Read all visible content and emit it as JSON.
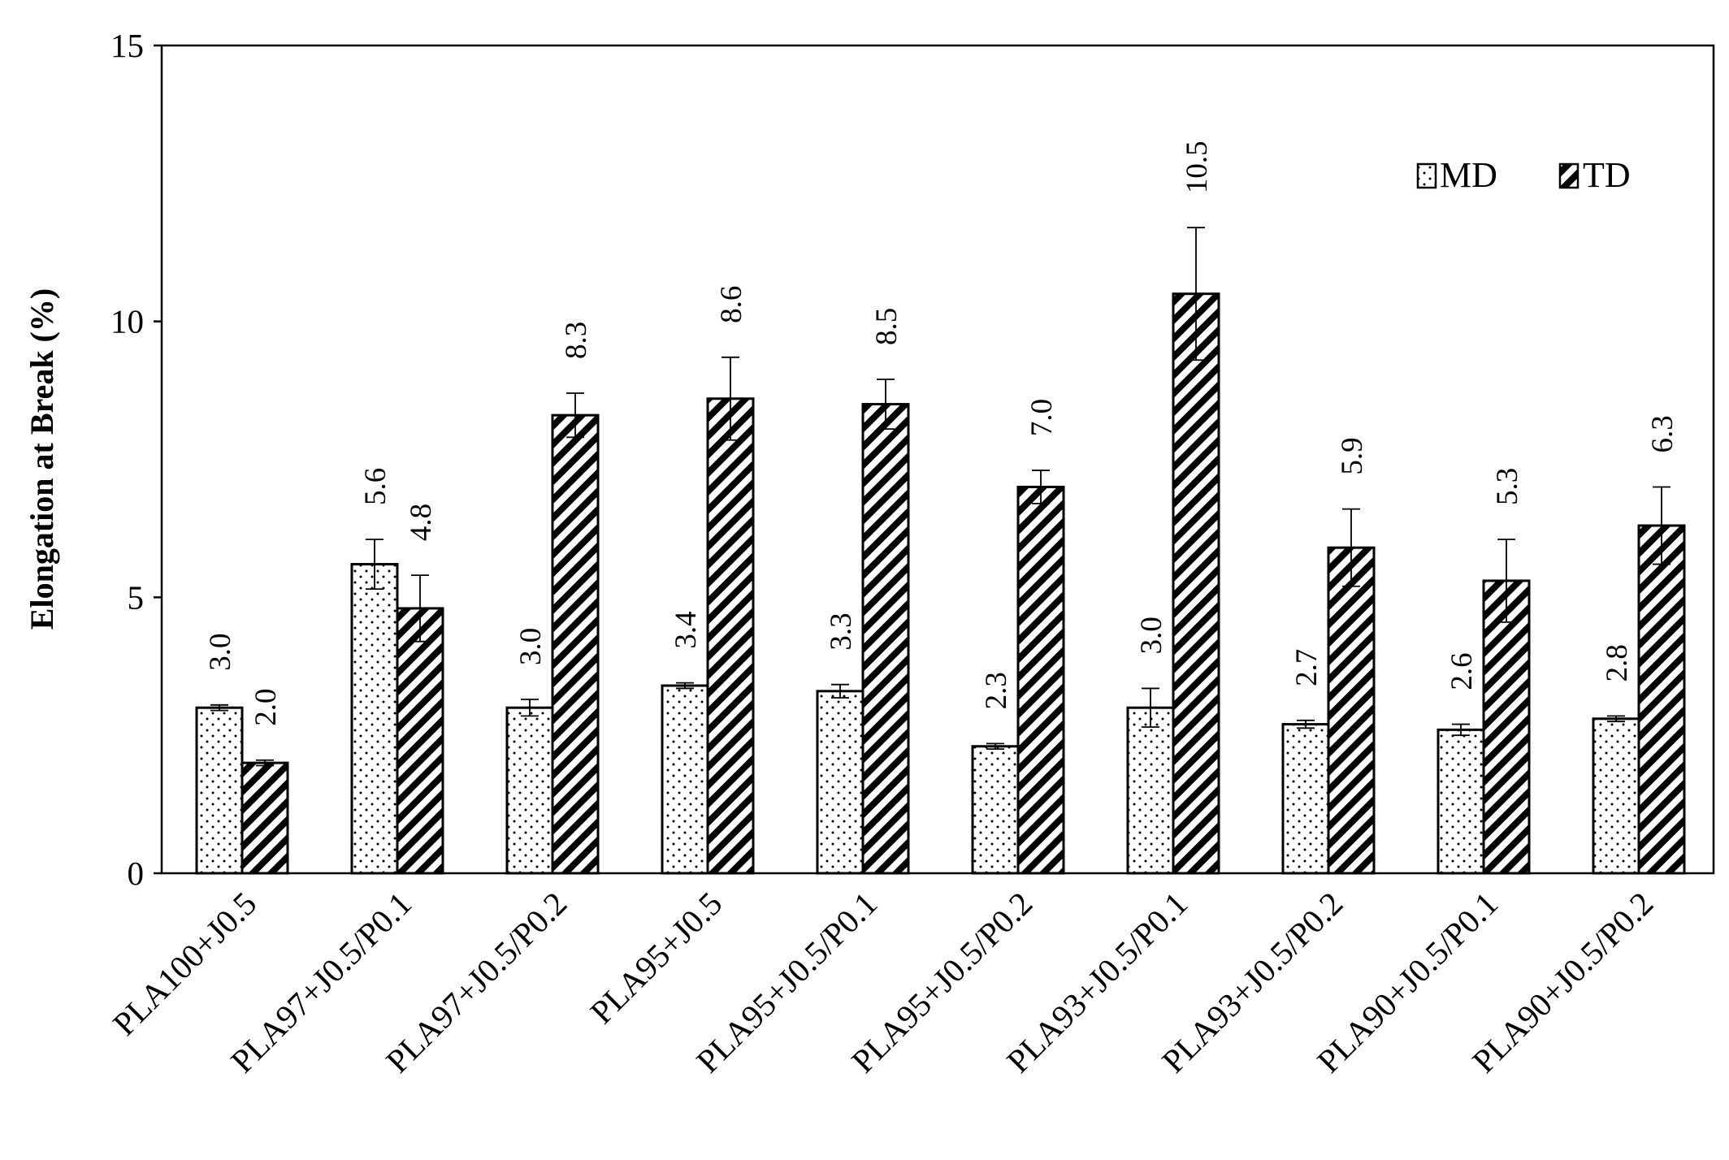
{
  "chart_data": {
    "type": "bar",
    "title": "",
    "xlabel": "",
    "ylabel": "Elongation at Break (%)",
    "ylim": [
      0,
      15
    ],
    "yticks": [
      0,
      5,
      10,
      15
    ],
    "grid": false,
    "legend_position": "top-right",
    "categories": [
      "PLA100+J0.5",
      "PLA97+J0.5/P0.1",
      "PLA97+J0.5/P0.2",
      "PLA95+J0.5",
      "PLA95+J0.5/P0.1",
      "PLA95+J0.5/P0.2",
      "PLA93+J0.5/P0.1",
      "PLA93+J0.5/P0.2",
      "PLA90+J0.5/P0.1",
      "PLA90+J0.5/P0.2"
    ],
    "series": [
      {
        "name": "MD",
        "pattern": "dots",
        "values": [
          3.0,
          5.6,
          3.0,
          3.4,
          3.3,
          2.3,
          3.0,
          2.7,
          2.6,
          2.8
        ],
        "labels": [
          "3.0",
          "5.6",
          "3.0",
          "3.4",
          "3.3",
          "2.3",
          "3.0",
          "2.7",
          "2.6",
          "2.8"
        ],
        "errors": [
          0.05,
          0.45,
          0.15,
          0.05,
          0.12,
          0.05,
          0.35,
          0.07,
          0.1,
          0.05
        ]
      },
      {
        "name": "TD",
        "pattern": "diagonal-hatch",
        "values": [
          2.0,
          4.8,
          8.3,
          8.6,
          8.5,
          7.0,
          10.5,
          5.9,
          5.3,
          6.3
        ],
        "labels": [
          "2.0",
          "4.8",
          "8.3",
          "8.6",
          "8.5",
          "7.0",
          "10.5",
          "5.9",
          "5.3",
          "6.3"
        ],
        "errors": [
          0.05,
          0.6,
          0.4,
          0.75,
          0.45,
          0.3,
          1.2,
          0.7,
          0.75,
          0.7
        ]
      }
    ],
    "colors": {
      "bar_fill": "#ffffff",
      "stroke": "#000000",
      "pattern": "#000000"
    }
  }
}
